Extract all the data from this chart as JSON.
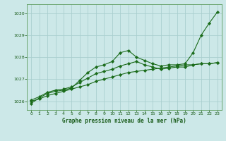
{
  "title": "Graphe pression niveau de la mer (hPa)",
  "bg_color": "#cce8e8",
  "grid_color": "#aacfcf",
  "line_color": "#1a6b1a",
  "marker_color": "#1a6b1a",
  "label_color": "#1a5c1a",
  "ylabel_min": 1025.6,
  "ylabel_max": 1030.4,
  "yticks": [
    1026,
    1027,
    1028,
    1029,
    1030
  ],
  "xticks": [
    0,
    1,
    2,
    3,
    4,
    5,
    6,
    7,
    8,
    9,
    10,
    11,
    12,
    13,
    14,
    15,
    16,
    17,
    18,
    19,
    20,
    21,
    22,
    23
  ],
  "series": [
    [
      1025.9,
      1026.15,
      1026.35,
      1026.45,
      1026.5,
      1026.6,
      1026.95,
      1027.3,
      1027.55,
      1027.65,
      1027.8,
      1028.2,
      1028.3,
      1028.0,
      1027.85,
      1027.7,
      1027.6,
      1027.65,
      1027.65,
      1027.7,
      1028.2,
      1029.0,
      1029.55,
      1030.05
    ],
    [
      1026.05,
      1026.2,
      1026.4,
      1026.5,
      1026.55,
      1026.65,
      1026.85,
      1027.05,
      1027.25,
      1027.35,
      1027.45,
      1027.6,
      1027.7,
      1027.8,
      1027.65,
      1027.55,
      1027.45,
      1027.5,
      1027.55,
      1027.55,
      1027.65,
      1027.7,
      1027.7,
      1027.75
    ],
    [
      1026.0,
      1026.1,
      1026.25,
      1026.35,
      1026.45,
      1026.55,
      1026.65,
      1026.75,
      1026.9,
      1027.0,
      1027.1,
      1027.2,
      1027.3,
      1027.35,
      1027.4,
      1027.45,
      1027.5,
      1027.55,
      1027.6,
      1027.65,
      1027.65,
      1027.7,
      1027.7,
      1027.75
    ]
  ]
}
